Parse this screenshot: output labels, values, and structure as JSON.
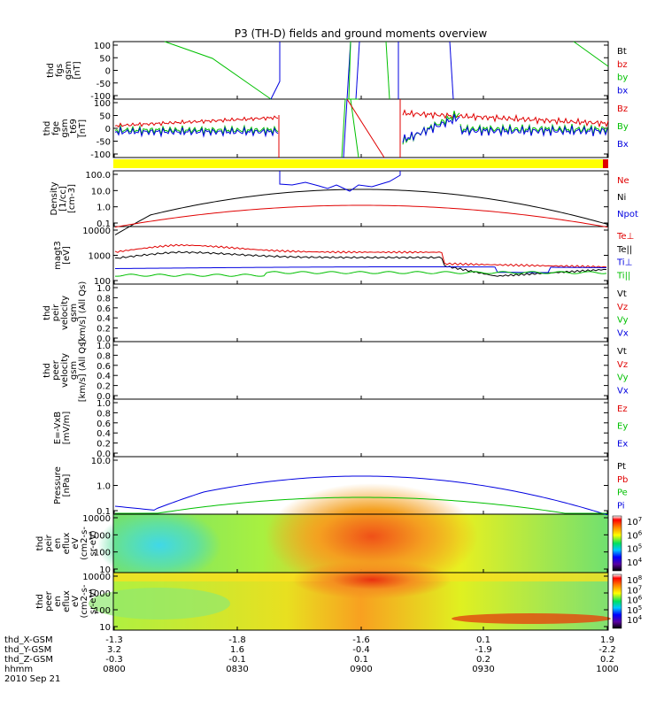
{
  "title": "P3 (TH-D) fields and ground moments overview",
  "colors": {
    "black": "#000000",
    "red": "#e00000",
    "green": "#00c000",
    "blue": "#0000e0",
    "yellow": "#ffff00"
  },
  "chart_data": [
    {
      "type": "line",
      "ylabel_lines": [
        "thd",
        "fgs",
        "gsm",
        "[nT]"
      ],
      "yticks": [
        "100",
        "50",
        "0",
        "-50",
        "-100"
      ],
      "ylim": [
        -100,
        100
      ],
      "legend": [
        {
          "label": "Bt",
          "color": "#000000"
        },
        {
          "label": "bz",
          "color": "#e00000"
        },
        {
          "label": "by",
          "color": "#00c000"
        },
        {
          "label": "bx",
          "color": "#0000e0"
        }
      ]
    },
    {
      "type": "line",
      "ylabel_lines": [
        "thd",
        "fge",
        "gsm",
        "_t69",
        "[nT]"
      ],
      "yticks": [
        "100",
        "50",
        "0",
        "-50",
        "-100"
      ],
      "ylim": [
        -100,
        100
      ],
      "legend": [
        {
          "label": "Bz",
          "color": "#e00000"
        },
        {
          "label": "By",
          "color": "#00c000"
        },
        {
          "label": "Bx",
          "color": "#0000e0"
        }
      ]
    },
    {
      "type": "line",
      "ylabel_lines": [
        "Density",
        "[1/cc]",
        "[cm-3]"
      ],
      "yticks": [
        "100.0",
        "10.0",
        "1.0",
        "0.1"
      ],
      "scale": "log",
      "legend": [
        {
          "label": "Ne",
          "color": "#e00000"
        },
        {
          "label": "Ni",
          "color": "#000000"
        },
        {
          "label": "Npot",
          "color": "#0000e0"
        }
      ]
    },
    {
      "type": "line",
      "ylabel_lines": [
        "magt3",
        "[eV]"
      ],
      "yticks": [
        "10000",
        "1000",
        "100"
      ],
      "scale": "log",
      "legend": [
        {
          "label": "Te⊥",
          "color": "#e00000"
        },
        {
          "label": "Te||",
          "color": "#000000"
        },
        {
          "label": "Ti⊥",
          "color": "#0000e0"
        },
        {
          "label": "Ti||",
          "color": "#00c000"
        }
      ]
    },
    {
      "type": "line",
      "ylabel_lines": [
        "thd",
        "peir",
        "velocity",
        "gsm",
        "[km/s] (All Qs)"
      ],
      "yticks": [
        "1.0",
        "0.8",
        "0.6",
        "0.4",
        "0.2",
        "0.0"
      ],
      "legend": [
        {
          "label": "Vt",
          "color": "#000000"
        },
        {
          "label": "Vz",
          "color": "#e00000"
        },
        {
          "label": "Vy",
          "color": "#00c000"
        },
        {
          "label": "Vx",
          "color": "#0000e0"
        }
      ]
    },
    {
      "type": "line",
      "ylabel_lines": [
        "thd",
        "peer",
        "velocity",
        "gsm",
        "[km/s] (All Qs)"
      ],
      "yticks": [
        "1.0",
        "0.8",
        "0.6",
        "0.4",
        "0.2",
        "0.0"
      ],
      "legend": [
        {
          "label": "Vt",
          "color": "#000000"
        },
        {
          "label": "Vz",
          "color": "#e00000"
        },
        {
          "label": "Vy",
          "color": "#00c000"
        },
        {
          "label": "Vx",
          "color": "#0000e0"
        }
      ]
    },
    {
      "type": "line",
      "ylabel_lines": [
        "E=-VxB",
        "[mV/m]"
      ],
      "yticks": [
        "1.0",
        "0.8",
        "0.6",
        "0.4",
        "0.2",
        "0.0"
      ],
      "legend": [
        {
          "label": "Ez",
          "color": "#e00000"
        },
        {
          "label": "Ey",
          "color": "#00c000"
        },
        {
          "label": "Ex",
          "color": "#0000e0"
        }
      ]
    },
    {
      "type": "line",
      "ylabel_lines": [
        "Pressure",
        "[nPa]"
      ],
      "yticks": [
        "10.0",
        "1.0",
        "0.1"
      ],
      "scale": "log",
      "legend": [
        {
          "label": "Pt",
          "color": "#000000"
        },
        {
          "label": "Pb",
          "color": "#e00000"
        },
        {
          "label": "Pe",
          "color": "#00c000"
        },
        {
          "label": "Pi",
          "color": "#0000e0"
        }
      ]
    },
    {
      "type": "heatmap",
      "ylabel_lines": [
        "thd",
        "peir",
        "en",
        "eflux",
        "eV",
        "(cm2-s-",
        "sr-eV)"
      ],
      "yticks": [
        "10000",
        "1000",
        "100",
        "10"
      ],
      "colorbar": {
        "labels": [
          "10^7",
          "10^6",
          "10^5",
          "10^4"
        ]
      }
    },
    {
      "type": "heatmap",
      "ylabel_lines": [
        "thd",
        "peer",
        "en",
        "eflux",
        "eV",
        "(cm2-s-",
        "sr-eV)"
      ],
      "yticks": [
        "10000",
        "1000",
        "100",
        "10"
      ],
      "colorbar": {
        "labels": [
          "10^8",
          "10^7",
          "10^6",
          "10^5",
          "10^4"
        ]
      }
    }
  ],
  "xaxis": {
    "rows": [
      {
        "label": "thd_X-GSM",
        "values": [
          "-1.3",
          "-1.8",
          "-1.6",
          "0.1",
          "1.9"
        ]
      },
      {
        "label": "thd_Y-GSM",
        "values": [
          "3.2",
          "1.6",
          "-0.4",
          "-1.9",
          "-2.2"
        ]
      },
      {
        "label": "thd_Z-GSM",
        "values": [
          "-0.3",
          "-0.1",
          "0.1",
          "0.2",
          "0.2"
        ]
      },
      {
        "label": "hhmm",
        "values": [
          "0800",
          "0830",
          "0900",
          "0930",
          "1000"
        ]
      }
    ],
    "date": "2010 Sep 21"
  }
}
